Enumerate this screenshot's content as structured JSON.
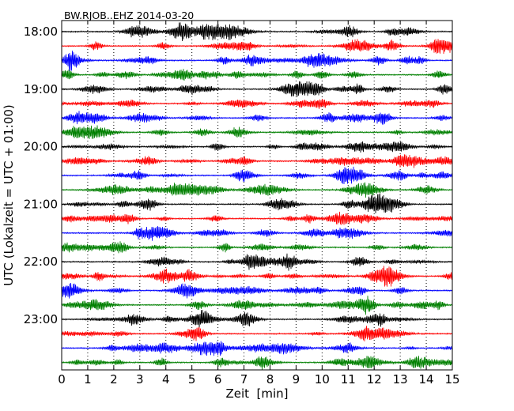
{
  "chart_data": {
    "type": "line",
    "title": "BW.RJOB..EHZ 2014-03-20",
    "xlabel": "Zeit  [min]",
    "ylabel": "UTC (Lokalzeit = UTC + 01:00)",
    "xlim": [
      0,
      15
    ],
    "x_ticks": [
      0,
      1,
      2,
      3,
      4,
      5,
      6,
      7,
      8,
      9,
      10,
      11,
      12,
      13,
      14,
      15
    ],
    "x_tick_labels": [
      "0",
      "1",
      "2",
      "3",
      "4",
      "5",
      "6",
      "7",
      "8",
      "9",
      "10",
      "11",
      "12",
      "13",
      "14",
      "15"
    ],
    "y_tick_labels": [
      "18:00",
      "19:00",
      "20:00",
      "21:00",
      "22:00",
      "23:00"
    ],
    "traces_per_hour": 4,
    "trace_minutes": 15,
    "trace_colors": [
      "#000000",
      "#ff0000",
      "#0000ff",
      "#008000"
    ],
    "grid": "vertical-dotted",
    "legend": "none"
  }
}
